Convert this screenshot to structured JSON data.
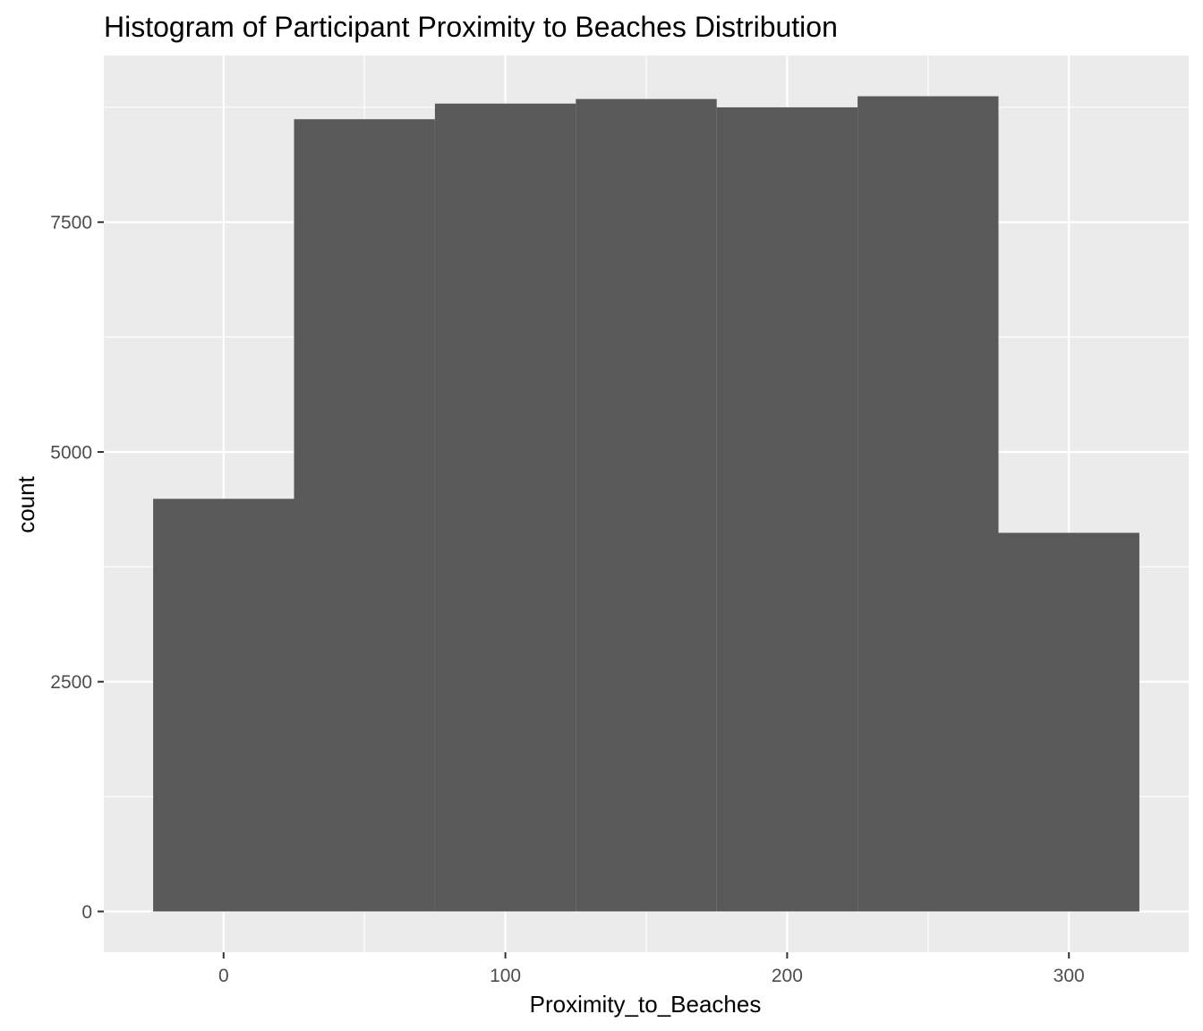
{
  "chart_data": {
    "type": "bar",
    "title": "Histogram of Participant Proximity to Beaches Distribution",
    "xlabel": "Proximity_to_Beaches",
    "ylabel": "count",
    "bins": [
      {
        "x0": -25,
        "x1": 25,
        "count": 4490
      },
      {
        "x0": 25,
        "x1": 75,
        "count": 8620
      },
      {
        "x0": 75,
        "x1": 125,
        "count": 8790
      },
      {
        "x0": 125,
        "x1": 175,
        "count": 8840
      },
      {
        "x0": 175,
        "x1": 225,
        "count": 8750
      },
      {
        "x0": 225,
        "x1": 275,
        "count": 8870
      },
      {
        "x0": 275,
        "x1": 325,
        "count": 4120
      }
    ],
    "xlim": [
      -42.5,
      342.5
    ],
    "ylim": [
      -443.5,
      9313.5
    ],
    "x_ticks": [
      0,
      100,
      200,
      300
    ],
    "x_tick_labels": [
      "0",
      "100",
      "200",
      "300"
    ],
    "x_minor_ticks": [
      50,
      150,
      250
    ],
    "y_ticks": [
      0,
      2500,
      5000,
      7500
    ],
    "y_tick_labels": [
      "0",
      "2500",
      "5000",
      "7500"
    ],
    "y_minor_ticks": [
      1250,
      3750,
      6250,
      8750
    ],
    "grid": true,
    "legend": "none",
    "colors": {
      "bar": "#595959",
      "panel": "#ebebeb",
      "grid": "#ffffff",
      "tick": "#333333"
    }
  }
}
